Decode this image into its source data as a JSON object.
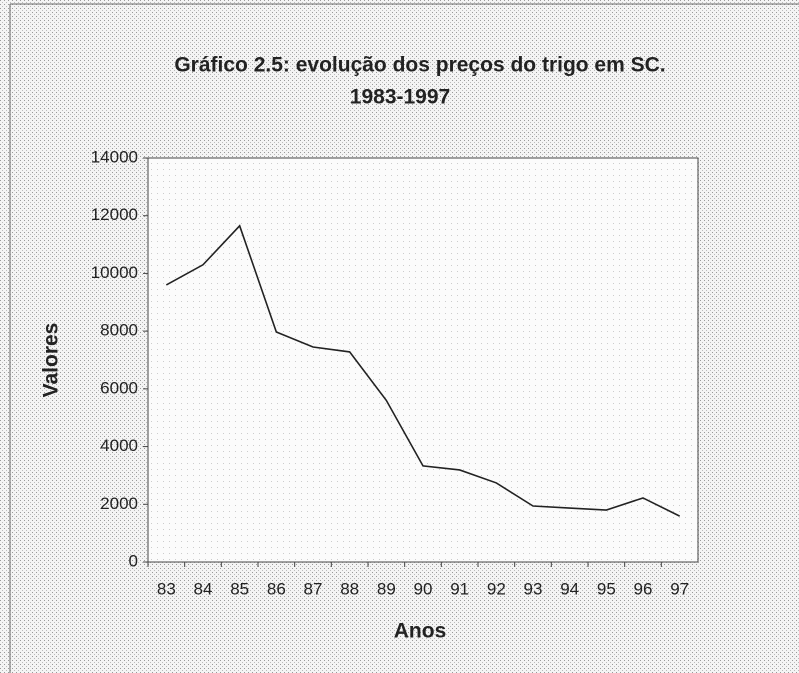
{
  "chart_data": {
    "type": "line",
    "title": "Gráfico 2.5: evolução dos preços do trigo em SC.",
    "subtitle": "1983-1997",
    "x_label": "Anos",
    "y_label": "Valores",
    "categories": [
      "83",
      "84",
      "85",
      "86",
      "87",
      "88",
      "89",
      "90",
      "91",
      "92",
      "93",
      "94",
      "95",
      "96",
      "97"
    ],
    "series": [
      {
        "name": "Valores",
        "color": "#222222",
        "values": [
          9600,
          10300,
          11650,
          7970,
          7450,
          7280,
          5600,
          3330,
          3190,
          2740,
          1940,
          1870,
          1800,
          2220,
          1590
        ]
      }
    ],
    "ylim": [
      0,
      14000
    ],
    "yticks": [
      0,
      2000,
      4000,
      6000,
      8000,
      10000,
      12000,
      14000
    ],
    "grid": false
  }
}
